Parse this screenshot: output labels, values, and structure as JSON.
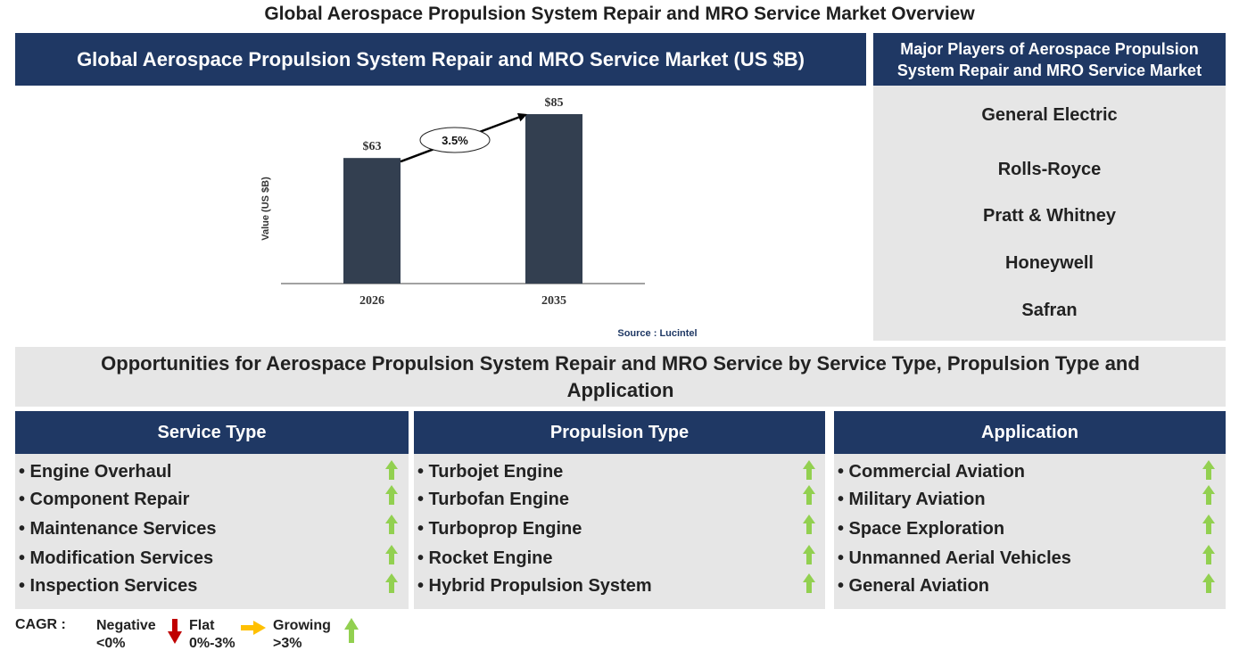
{
  "title": "Global Aerospace Propulsion System Repair and MRO Service Market Overview",
  "chart_panel": {
    "header": "Global Aerospace Propulsion System Repair and MRO Service Market (US $B)"
  },
  "chart_data": {
    "type": "bar",
    "categories": [
      "2026",
      "2035"
    ],
    "values": [
      63,
      85
    ],
    "value_labels": [
      "$63",
      "$85"
    ],
    "ylabel": "Value (US $B)",
    "cagr_label": "3.5%",
    "source": "Source : Lucintel",
    "bar_color": "#333f50"
  },
  "players": {
    "header": "Major Players of Aerospace Propulsion System Repair and MRO Service Market",
    "items": [
      "General Electric",
      "Rolls-Royce",
      "Pratt & Whitney",
      "Honeywell",
      "Safran"
    ]
  },
  "opportunities": {
    "header": "Opportunities for Aerospace Propulsion System Repair and MRO Service by Service Type, Propulsion Type and Application",
    "columns": [
      {
        "title": "Service Type",
        "items": [
          "• Engine Overhaul",
          "• Component Repair",
          "• Maintenance Services",
          "• Modification Services",
          "• Inspection Services"
        ]
      },
      {
        "title": "Propulsion Type",
        "items": [
          "• Turbojet Engine",
          "• Turbofan Engine",
          "• Turboprop Engine",
          "• Rocket Engine",
          "• Hybrid Propulsion System"
        ]
      },
      {
        "title": "Application",
        "items": [
          "• Commercial Aviation",
          "• Military Aviation",
          "• Space Exploration",
          "• Unmanned Aerial Vehicles",
          "• General Aviation"
        ]
      }
    ],
    "trend_icon": "green-up-arrow-icon"
  },
  "legend": {
    "cagr_label": "CAGR :",
    "negative": {
      "label": "Negative",
      "range": "<0%",
      "color": "#c00000"
    },
    "flat": {
      "label": "Flat",
      "range": "0%-3%",
      "color": "#ffc000"
    },
    "growing": {
      "label": "Growing",
      "range": ">3%",
      "color": "#92d050"
    }
  },
  "colors": {
    "navy": "#1f3864",
    "panel_gray": "#e6e6e6",
    "growth_green": "#92d050"
  }
}
